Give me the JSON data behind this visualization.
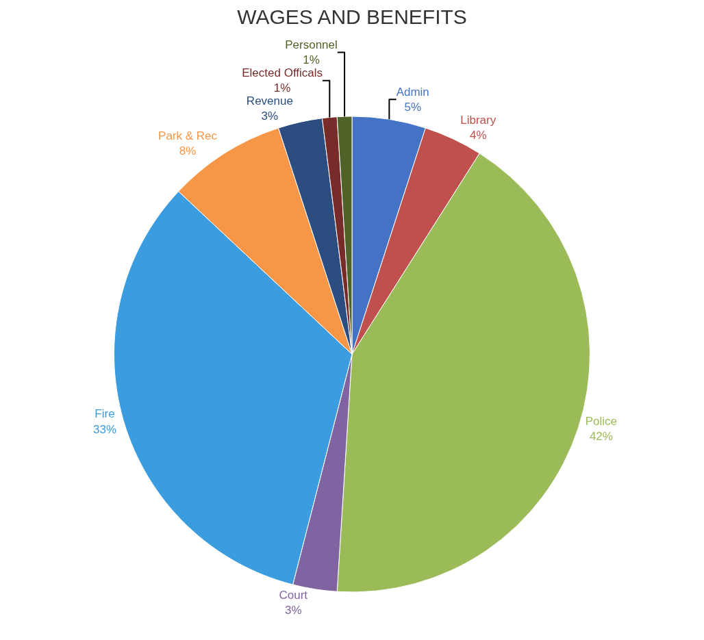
{
  "chart_data": {
    "type": "pie",
    "title": "WAGES AND BENEFITS",
    "categories": [
      "Admin",
      "Library",
      "Police",
      "Court",
      "Fire",
      "Park & Rec",
      "Revenue",
      "Elected Officals",
      "Personnel"
    ],
    "values": [
      5,
      4,
      42,
      3,
      33,
      8,
      3,
      1,
      1
    ],
    "value_labels": [
      "5%",
      "4%",
      "42%",
      "3%",
      "33%",
      "8%",
      "3%",
      "1%",
      "1%"
    ],
    "colors": [
      "#4472c4",
      "#c0504d",
      "#9bbb59",
      "#8064a2",
      "#3b9de0",
      "#f79646",
      "#2c4d7f",
      "#772c2a",
      "#4f6228"
    ],
    "legend": false
  }
}
